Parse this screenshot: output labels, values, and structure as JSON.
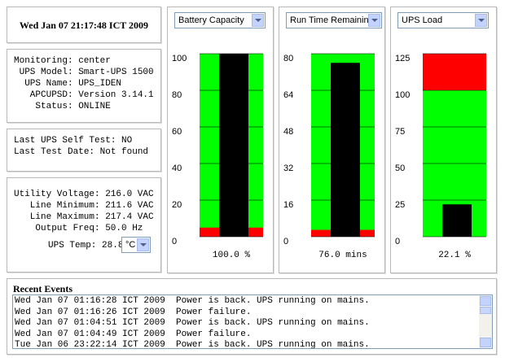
{
  "header": {
    "datetime": "Wed Jan 07 21:17:48 ICT 2009"
  },
  "status": {
    "rows": [
      [
        "Monitoring:",
        "center"
      ],
      [
        "UPS Model:",
        "Smart-UPS 1500"
      ],
      [
        "UPS Name:",
        "UPS_IDEN"
      ],
      [
        "APCUPSD:",
        "Version 3.14.1"
      ],
      [
        "Status:",
        "ONLINE"
      ]
    ]
  },
  "self_test": {
    "rows": [
      [
        "Last UPS Self Test:",
        "NO"
      ],
      [
        "Last Test Date:",
        "Not found"
      ]
    ]
  },
  "power": {
    "rows": [
      [
        "Utility Voltage:",
        "216.0 VAC"
      ],
      [
        "Line Minimum:",
        "211.6 VAC"
      ],
      [
        "Line Maximum:",
        "217.4 VAC"
      ],
      [
        "Output Freq:",
        "50.0 Hz"
      ]
    ],
    "temp_label": "UPS Temp:",
    "temp_value": "28.8",
    "temp_unit": "°C"
  },
  "chart_data": [
    {
      "type": "bar",
      "title": "Battery Capacity",
      "values": [
        100
      ],
      "value_labels": [
        "100.0 %"
      ],
      "ylim": [
        0,
        100
      ],
      "yticks": [
        0,
        20,
        40,
        60,
        80,
        100
      ],
      "grid": true,
      "color": "#000000",
      "background": "#00ff00",
      "zones": [
        {
          "range": [
            0,
            5
          ],
          "color": "#ff0000"
        }
      ]
    },
    {
      "type": "bar",
      "title": "Run Time Remaining",
      "values": [
        76
      ],
      "value_labels": [
        "76.0 mins"
      ],
      "ylim": [
        0,
        80
      ],
      "yticks": [
        0,
        16,
        32,
        48,
        64,
        80
      ],
      "grid": true,
      "color": "#000000",
      "background": "#00ff00",
      "zones": [
        {
          "range": [
            0,
            3
          ],
          "color": "#ff0000"
        }
      ]
    },
    {
      "type": "bar",
      "title": "UPS Load",
      "values": [
        22.1
      ],
      "value_labels": [
        "22.1 %"
      ],
      "ylim": [
        0,
        125
      ],
      "yticks": [
        0,
        25,
        50,
        75,
        100,
        125
      ],
      "grid": true,
      "color": "#000000",
      "background": "#00ff00",
      "zones": [
        {
          "range": [
            100,
            125
          ],
          "color": "#ff0000"
        }
      ]
    }
  ],
  "events": {
    "title": "Recent Events",
    "lines": [
      "Wed Jan 07 01:16:28 ICT 2009  Power is back. UPS running on mains.",
      "Wed Jan 07 01:16:26 ICT 2009  Power failure.",
      "Wed Jan 07 01:04:51 ICT 2009  Power is back. UPS running on mains.",
      "Wed Jan 07 01:04:49 ICT 2009  Power failure.",
      "Tue Jan 06 23:22:14 ICT 2009  Power is back. UPS running on mains."
    ]
  }
}
